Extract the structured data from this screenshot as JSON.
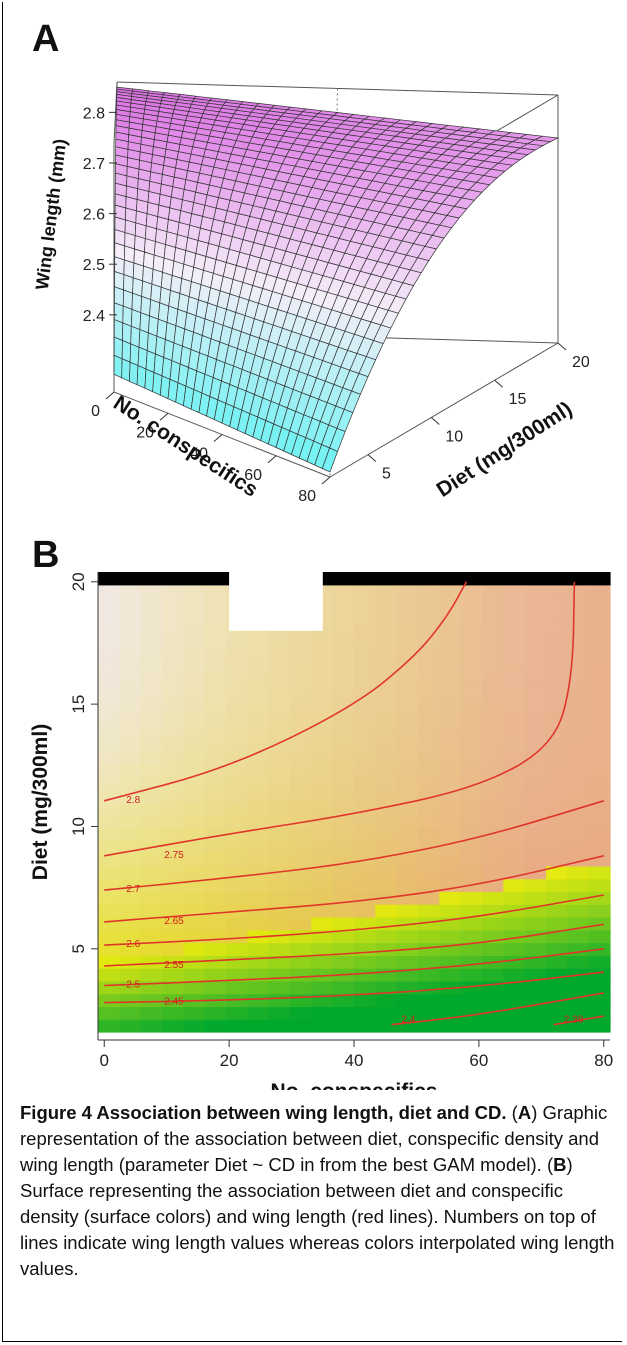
{
  "panels": {
    "a_label": "A",
    "b_label": "B"
  },
  "chart_data": [
    {
      "type": "surface3d",
      "zlabel": "Wing length (mm)",
      "xlabel": "No. conspecifics",
      "ylabel": "Diet (mg/300ml)",
      "z_ticks": [
        "2.4",
        "2.5",
        "2.6",
        "2.7",
        "2.8"
      ],
      "x_ticks": [
        "0",
        "20",
        "40",
        "60",
        "80"
      ],
      "y_ticks": [
        "5",
        "10",
        "15",
        "20"
      ],
      "xlim": [
        0,
        80
      ],
      "ylim": [
        2,
        20
      ],
      "zlim": [
        2.37,
        2.86
      ],
      "colors": {
        "low": "#66f2f2",
        "mid": "#f4eef8",
        "high": "#dc6ee4"
      },
      "corner_values": [
        {
          "conspecifics": 0,
          "diet": 2,
          "wing_length": 2.41
        },
        {
          "conspecifics": 0,
          "diet": 20,
          "wing_length": 2.85
        },
        {
          "conspecifics": 80,
          "diet": 20,
          "wing_length": 2.79
        },
        {
          "conspecifics": 80,
          "diet": 2,
          "wing_length": 2.38
        }
      ]
    },
    {
      "type": "contour",
      "xlabel": "No. conspecifics",
      "ylabel": "Diet (mg/300ml)",
      "x_ticks": [
        "0",
        "20",
        "40",
        "60",
        "80"
      ],
      "y_ticks": [
        "5",
        "10",
        "15",
        "20"
      ],
      "xlim": [
        -1,
        81
      ],
      "ylim": [
        1.6,
        20.4
      ],
      "colors": {
        "line": "#e0352a",
        "label": "#d02020",
        "low": "#00a82c",
        "mid": "#e6ea10",
        "high": "#f2e8ea"
      },
      "contours": [
        {
          "label": "2.8",
          "points": [
            [
              0,
              11.05
            ],
            [
              20,
              12.4
            ],
            [
              40,
              14.9
            ],
            [
              50,
              17
            ],
            [
              55,
              18.6
            ],
            [
              58,
              20
            ]
          ]
        },
        {
          "label": "2.75",
          "points": [
            [
              0,
              8.8
            ],
            [
              20,
              9.7
            ],
            [
              40,
              10.5
            ],
            [
              60,
              11.6
            ],
            [
              72,
              13.3
            ],
            [
              75,
              16
            ],
            [
              75.3,
              20
            ]
          ]
        },
        {
          "label": "2.7",
          "points": [
            [
              0,
              7.4
            ],
            [
              20,
              7.9
            ],
            [
              40,
              8.5
            ],
            [
              60,
              9.5
            ],
            [
              80,
              11.05
            ]
          ]
        },
        {
          "label": "2.65",
          "points": [
            [
              0,
              6.1
            ],
            [
              20,
              6.5
            ],
            [
              40,
              6.9
            ],
            [
              60,
              7.6
            ],
            [
              80,
              8.8
            ]
          ]
        },
        {
          "label": "2.6",
          "points": [
            [
              0,
              5.15
            ],
            [
              20,
              5.4
            ],
            [
              40,
              5.75
            ],
            [
              60,
              6.3
            ],
            [
              80,
              7.2
            ]
          ]
        },
        {
          "label": "2.55",
          "points": [
            [
              0,
              4.3
            ],
            [
              20,
              4.55
            ],
            [
              40,
              4.8
            ],
            [
              60,
              5.2
            ],
            [
              80,
              6
            ]
          ]
        },
        {
          "label": "2.5",
          "points": [
            [
              0,
              3.5
            ],
            [
              20,
              3.7
            ],
            [
              40,
              3.95
            ],
            [
              60,
              4.35
            ],
            [
              80,
              5
            ]
          ]
        },
        {
          "label": "2.45",
          "points": [
            [
              0,
              2.8
            ],
            [
              20,
              2.9
            ],
            [
              40,
              3.1
            ],
            [
              60,
              3.45
            ],
            [
              80,
              4.05
            ]
          ]
        },
        {
          "label": "2.4",
          "points": [
            [
              46,
              1.9
            ],
            [
              60,
              2.3
            ],
            [
              80,
              3.2
            ]
          ]
        },
        {
          "label": "2.38",
          "points": [
            [
              72,
              1.9
            ],
            [
              80,
              2.25
            ]
          ]
        }
      ],
      "blank_region": [
        [
          20,
          20.4
        ],
        [
          20,
          18
        ],
        [
          35,
          18
        ],
        [
          35,
          20.4
        ]
      ]
    }
  ],
  "caption": {
    "lead": "Figure 4 Association between wing length, diet and CD.",
    "p1": " (",
    "a": "A",
    "p2": ") Graphic representation of the association between diet, conspecific density and wing length (parameter Diet ~ CD in from the best GAM model). (",
    "b": "B",
    "p3": ") Surface representing the association between diet and conspecific density (surface colors) and wing length (red lines). Numbers on top of lines indicate wing length values whereas colors interpolated wing length values."
  }
}
